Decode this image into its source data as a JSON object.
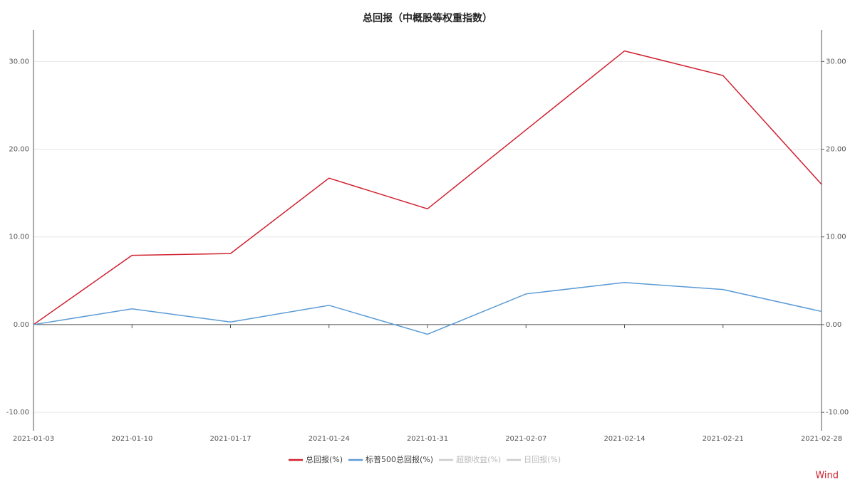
{
  "chart_data": {
    "type": "line",
    "title": "总回报（中概股等权重指数）",
    "x": [
      "2021-01-03",
      "2021-01-10",
      "2021-01-17",
      "2021-01-24",
      "2021-01-31",
      "2021-02-07",
      "2021-02-14",
      "2021-02-21",
      "2021-02-28"
    ],
    "series": [
      {
        "name": "总回报(%)",
        "color": "#d0202f",
        "values": [
          0,
          7.9,
          8.1,
          16.7,
          13.2,
          22.2,
          31.2,
          28.4,
          16.0
        ]
      },
      {
        "name": "标普500总回报(%)",
        "color": "#5b9bd5",
        "values": [
          0,
          1.8,
          0.3,
          2.2,
          -1.1,
          3.5,
          4.8,
          4.0,
          1.5
        ]
      }
    ],
    "legend_inactive": [
      {
        "name": "超额收益(%)",
        "color": "#cccccc"
      },
      {
        "name": "日回报(%)",
        "color": "#cccccc"
      }
    ],
    "ylim": [
      -12.1,
      33.6
    ],
    "yticks": [
      {
        "value": -10,
        "label": "-10.00"
      },
      {
        "value": 0,
        "label": "0.00"
      },
      {
        "value": 10,
        "label": "10.00"
      },
      {
        "value": 20,
        "label": "20.00"
      },
      {
        "value": 30,
        "label": "30.00"
      }
    ],
    "y2lim": [
      -12.1,
      33.6
    ],
    "y2ticks": [
      {
        "value": -10,
        "label": "-10.00"
      },
      {
        "value": 0,
        "label": "0.00"
      },
      {
        "value": 10,
        "label": "10.00"
      },
      {
        "value": 20,
        "label": "20.00"
      },
      {
        "value": 30,
        "label": "30.00"
      }
    ],
    "grid": true,
    "legend": "bottom",
    "source": "Wind"
  }
}
